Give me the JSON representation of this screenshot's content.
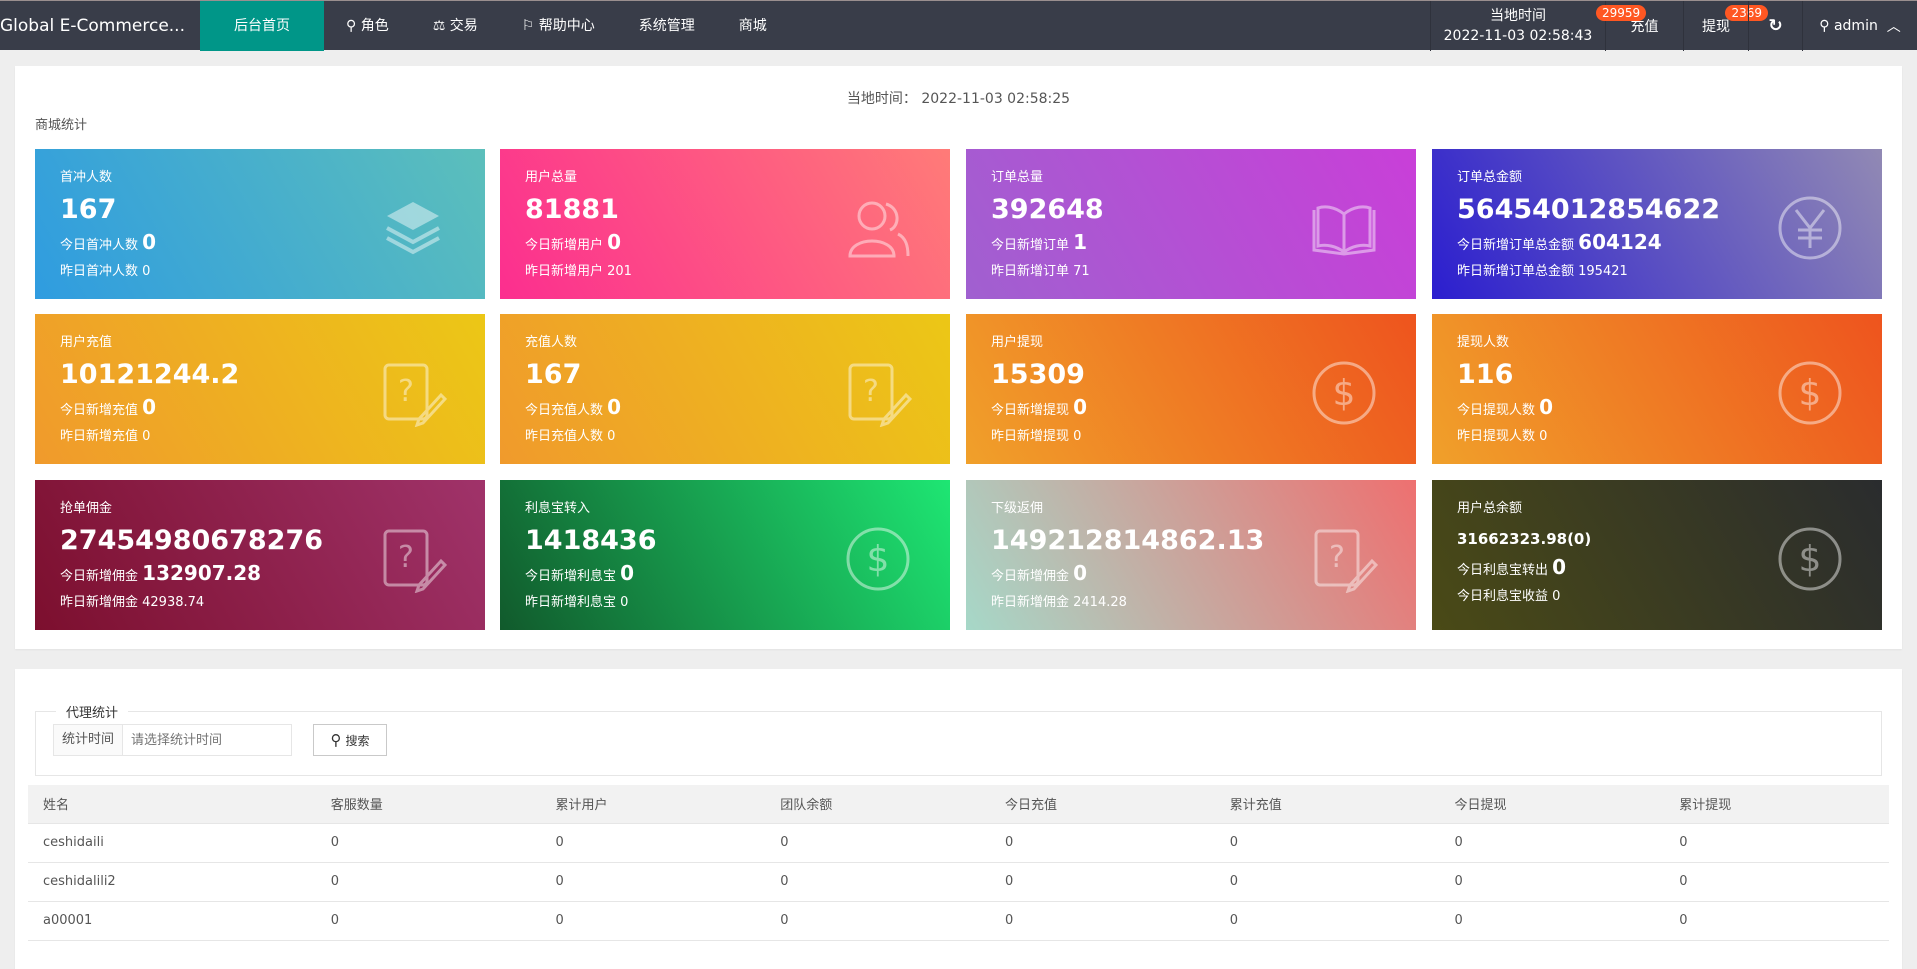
{
  "header": {
    "brand": "Global E-Commerce...",
    "nav": [
      "后台首页",
      "角色",
      "交易",
      "帮助中心",
      "系统管理",
      "商城"
    ],
    "clock_label": "当地时间",
    "clock_time": "2022-11-03 02:58:43",
    "recharge": "充值",
    "recharge_badge": "29959",
    "withdraw": "提现",
    "withdraw_badge": "2369",
    "user": "admin"
  },
  "stats": {
    "local_time": "当地时间： 2022-11-03 02:58:25",
    "section": "商城统计",
    "cards": [
      {
        "title": "首冲人数",
        "value": "167",
        "today_label": "今日首冲人数",
        "today": "0",
        "yesterday": "昨日首冲人数 0",
        "icon": "layers-icon",
        "from": "#2f9ce0",
        "to": "#5cbfbb"
      },
      {
        "title": "用户总量",
        "value": "81881",
        "today_label": "今日新增用户",
        "today": "0",
        "yesterday": "昨日新增用户 201",
        "icon": "users-icon",
        "from": "#fc2e8f",
        "to": "#ff7b78"
      },
      {
        "title": "订单总量",
        "value": "392648",
        "today_label": "今日新增订单",
        "today": "1",
        "yesterday": "昨日新增订单 71",
        "icon": "book-icon",
        "from": "#a060d0",
        "to": "#c93fd8"
      },
      {
        "title": "订单总金额",
        "value": "56454012854622",
        "today_label": "今日新增订单总金额",
        "today": "604124",
        "yesterday": "昨日新增订单总金额 195421",
        "icon": "yen-icon",
        "from": "#2b1ecf",
        "to": "#9189b4"
      },
      {
        "title": "用户充值",
        "value": "10121244.2",
        "today_label": "今日新增充值",
        "today": "0",
        "yesterday": "昨日新增充值 0",
        "icon": "question-edit-icon",
        "from": "#f09a2c",
        "to": "#ecc716"
      },
      {
        "title": "充值人数",
        "value": "167",
        "today_label": "今日充值人数",
        "today": "0",
        "yesterday": "昨日充值人数 0",
        "icon": "question-edit-icon",
        "from": "#f09a2c",
        "to": "#ecc716"
      },
      {
        "title": "用户提现",
        "value": "15309",
        "today_label": "今日新增提现",
        "today": "0",
        "yesterday": "昨日新增提现 0",
        "icon": "dollar-icon",
        "from": "#f0a02a",
        "to": "#ee541e"
      },
      {
        "title": "提现人数",
        "value": "116",
        "today_label": "今日提现人数",
        "today": "0",
        "yesterday": "昨日提现人数 0",
        "icon": "dollar-icon",
        "from": "#f0a02a",
        "to": "#ee541e"
      },
      {
        "title": "抢单佣金",
        "value": "27454980678276",
        "today_label": "今日新增佣金",
        "today": "132907.28",
        "yesterday": "昨日新增佣金 42938.74",
        "icon": "question-edit-icon",
        "from": "#7c0f2e",
        "to": "#a0336a"
      },
      {
        "title": "利息宝转入",
        "value": "1418436",
        "today_label": "今日新增利息宝",
        "today": "0",
        "yesterday": "昨日新增利息宝 0",
        "icon": "dollar-icon",
        "from": "#115a2c",
        "to": "#1ee673"
      },
      {
        "title": "下级返佣",
        "value": "149212814862.13",
        "today_label": "今日新增佣金",
        "today": "0",
        "yesterday": "昨日新增佣金 2414.28",
        "icon": "question-edit-icon",
        "from": "#a6d8c8",
        "to": "#ee7070"
      },
      {
        "title": "用户总余额",
        "value": "31662323.98(0)",
        "today_label": "今日利息宝转出",
        "today": "0",
        "yesterday": "今日利息宝收益 0",
        "icon": "dollar-icon",
        "from": "#4a4a16",
        "to": "#2a2c2e"
      }
    ]
  },
  "agent": {
    "legend": "代理统计",
    "time_label": "统计时间",
    "time_placeholder": "请选择统计时间",
    "search": "搜索",
    "columns": [
      "姓名",
      "客服数量",
      "累计用户",
      "团队余额",
      "今日充值",
      "累计充值",
      "今日提现",
      "累计提现"
    ],
    "rows": [
      [
        "ceshidaili",
        "0",
        "0",
        "0",
        "0",
        "0",
        "0",
        "0"
      ],
      [
        "ceshidalili2",
        "0",
        "0",
        "0",
        "0",
        "0",
        "0",
        "0"
      ],
      [
        "a00001",
        "0",
        "0",
        "0",
        "0",
        "0",
        "0",
        "0"
      ]
    ]
  }
}
